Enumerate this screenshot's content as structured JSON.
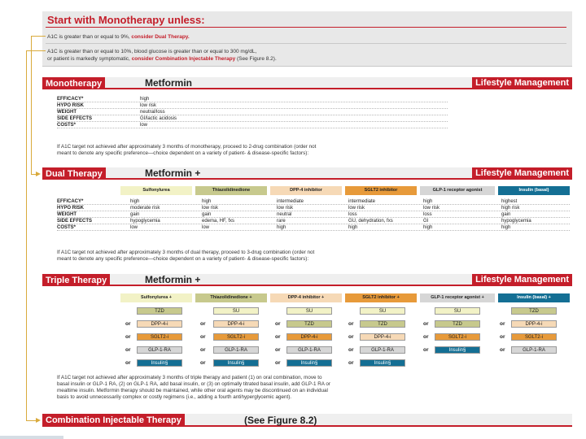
{
  "banner": {
    "title": "Start with Monotherapy unless:",
    "line1_pre": "A1C is greater than or equal to 9%, ",
    "line1_hl": "consider Dual Therapy.",
    "line2a": "A1C is greater than or equal to 10%, blood glucose is greater than or equal to 300 mg/dL,",
    "line2b_pre": "or patient is markedly symptomatic, ",
    "line2b_hl": "consider Combination Injectable Therapy",
    "line2b_post": " (See Figure 8.2)."
  },
  "mono": {
    "label": "Monotherapy",
    "drug": "Metformin",
    "lifestyle": "Lifestyle Management",
    "rows": [
      {
        "label": "EFFICACY*",
        "value": "high"
      },
      {
        "label": "HYPO RISK",
        "value": "low risk"
      },
      {
        "label": "WEIGHT",
        "value": "neutral/loss"
      },
      {
        "label": "SIDE EFFECTS",
        "value": "GI/lactic acidosis"
      },
      {
        "label": "COSTS*",
        "value": "low"
      }
    ],
    "note1": "If A1C target not achieved after approximately 3 months of monotherapy, proceed to 2-drug combination (order not",
    "note2": "meant to denote any specific preference—choice dependent on a variety of patient- & disease-specific factors):"
  },
  "dual": {
    "label": "Dual Therapy",
    "drug": "Metformin +",
    "lifestyle": "Lifestyle Management",
    "headers": [
      "Sulfonylurea",
      "Thiazolidinedione",
      "DPP-4 inhibitor",
      "SGLT2 inhibitor",
      "GLP-1 receptor agonist",
      "Insulin (basal)"
    ],
    "rows": [
      {
        "label": "EFFICACY*",
        "values": [
          "high",
          "high",
          "intermediate",
          "intermediate",
          "high",
          "highest"
        ]
      },
      {
        "label": "HYPO RISK",
        "values": [
          "moderate risk",
          "low risk",
          "low risk",
          "low risk",
          "low risk",
          "high risk"
        ]
      },
      {
        "label": "WEIGHT",
        "values": [
          "gain",
          "gain",
          "neutral",
          "loss",
          "loss",
          "gain"
        ]
      },
      {
        "label": "SIDE EFFECTS",
        "values": [
          "hypoglycemia",
          "edema, HF, fxs",
          "rare",
          "GU, dehydration, fxs",
          "GI",
          "hypoglycemia"
        ]
      },
      {
        "label": "COSTS*",
        "values": [
          "low",
          "low",
          "high",
          "high",
          "high",
          "high"
        ]
      }
    ],
    "note1": "If A1C target not achieved after approximately 3 months of dual therapy, proceed to 3-drug combination (order not",
    "note2": "meant to denote any specific preference—choice dependent on a variety of patient- & disease-specific factors):"
  },
  "triple": {
    "label": "Triple Therapy",
    "drug": "Metformin +",
    "lifestyle": "Lifestyle Management",
    "or_label": "or",
    "headers": [
      "Sulfonylurea +",
      "Thiazolidinedione +",
      "DPP-4 inhibitor +",
      "SGLT2 inhibitor +",
      "GLP-1 receptor agonist +",
      "Insulin (basal) +"
    ],
    "columns": [
      [
        "TZD",
        "DPP-4-i",
        "SGLT2-i",
        "GLP-1-RA",
        "Insulin§"
      ],
      [
        "SU",
        "DPP-4-i",
        "SGLT2-i",
        "GLP-1-RA",
        "Insulin§"
      ],
      [
        "SU",
        "TZD",
        "Insulin§"
      ],
      [
        "SU",
        "TZD",
        "DPP-4-i",
        "Insulin§"
      ],
      [
        "SU",
        "TZD",
        "Insulin§"
      ],
      [
        "TZD",
        "DPP-4-i",
        "SGLT2-i",
        "GLP-1-RA"
      ]
    ],
    "note1": "If A1C target not achieved after approximately 3 months of triple therapy and patient (1) on oral combination, move to",
    "note2": "basal insulin or GLP-1 RA, (2) on GLP-1 RA, add basal insulin, or (3) on optimally titrated basal insulin, add GLP-1 RA or",
    "note3": "mealtime insulin. Metformin therapy should be maintained, while other oral agents may be discontinued on an individual",
    "note4": "basis to avoid unnecessarily complex or costly regimens (i.e., adding a fourth antihyperglycemic agent)."
  },
  "combo": {
    "label": "Combination Injectable Therapy",
    "ref": "(See Figure 8.2)"
  },
  "colors": {
    "accent_red": "#c41e2a",
    "connector": "#d9aa3c",
    "insulin_blue": "#146f94",
    "sglt2_orange": "#e79a3a"
  }
}
